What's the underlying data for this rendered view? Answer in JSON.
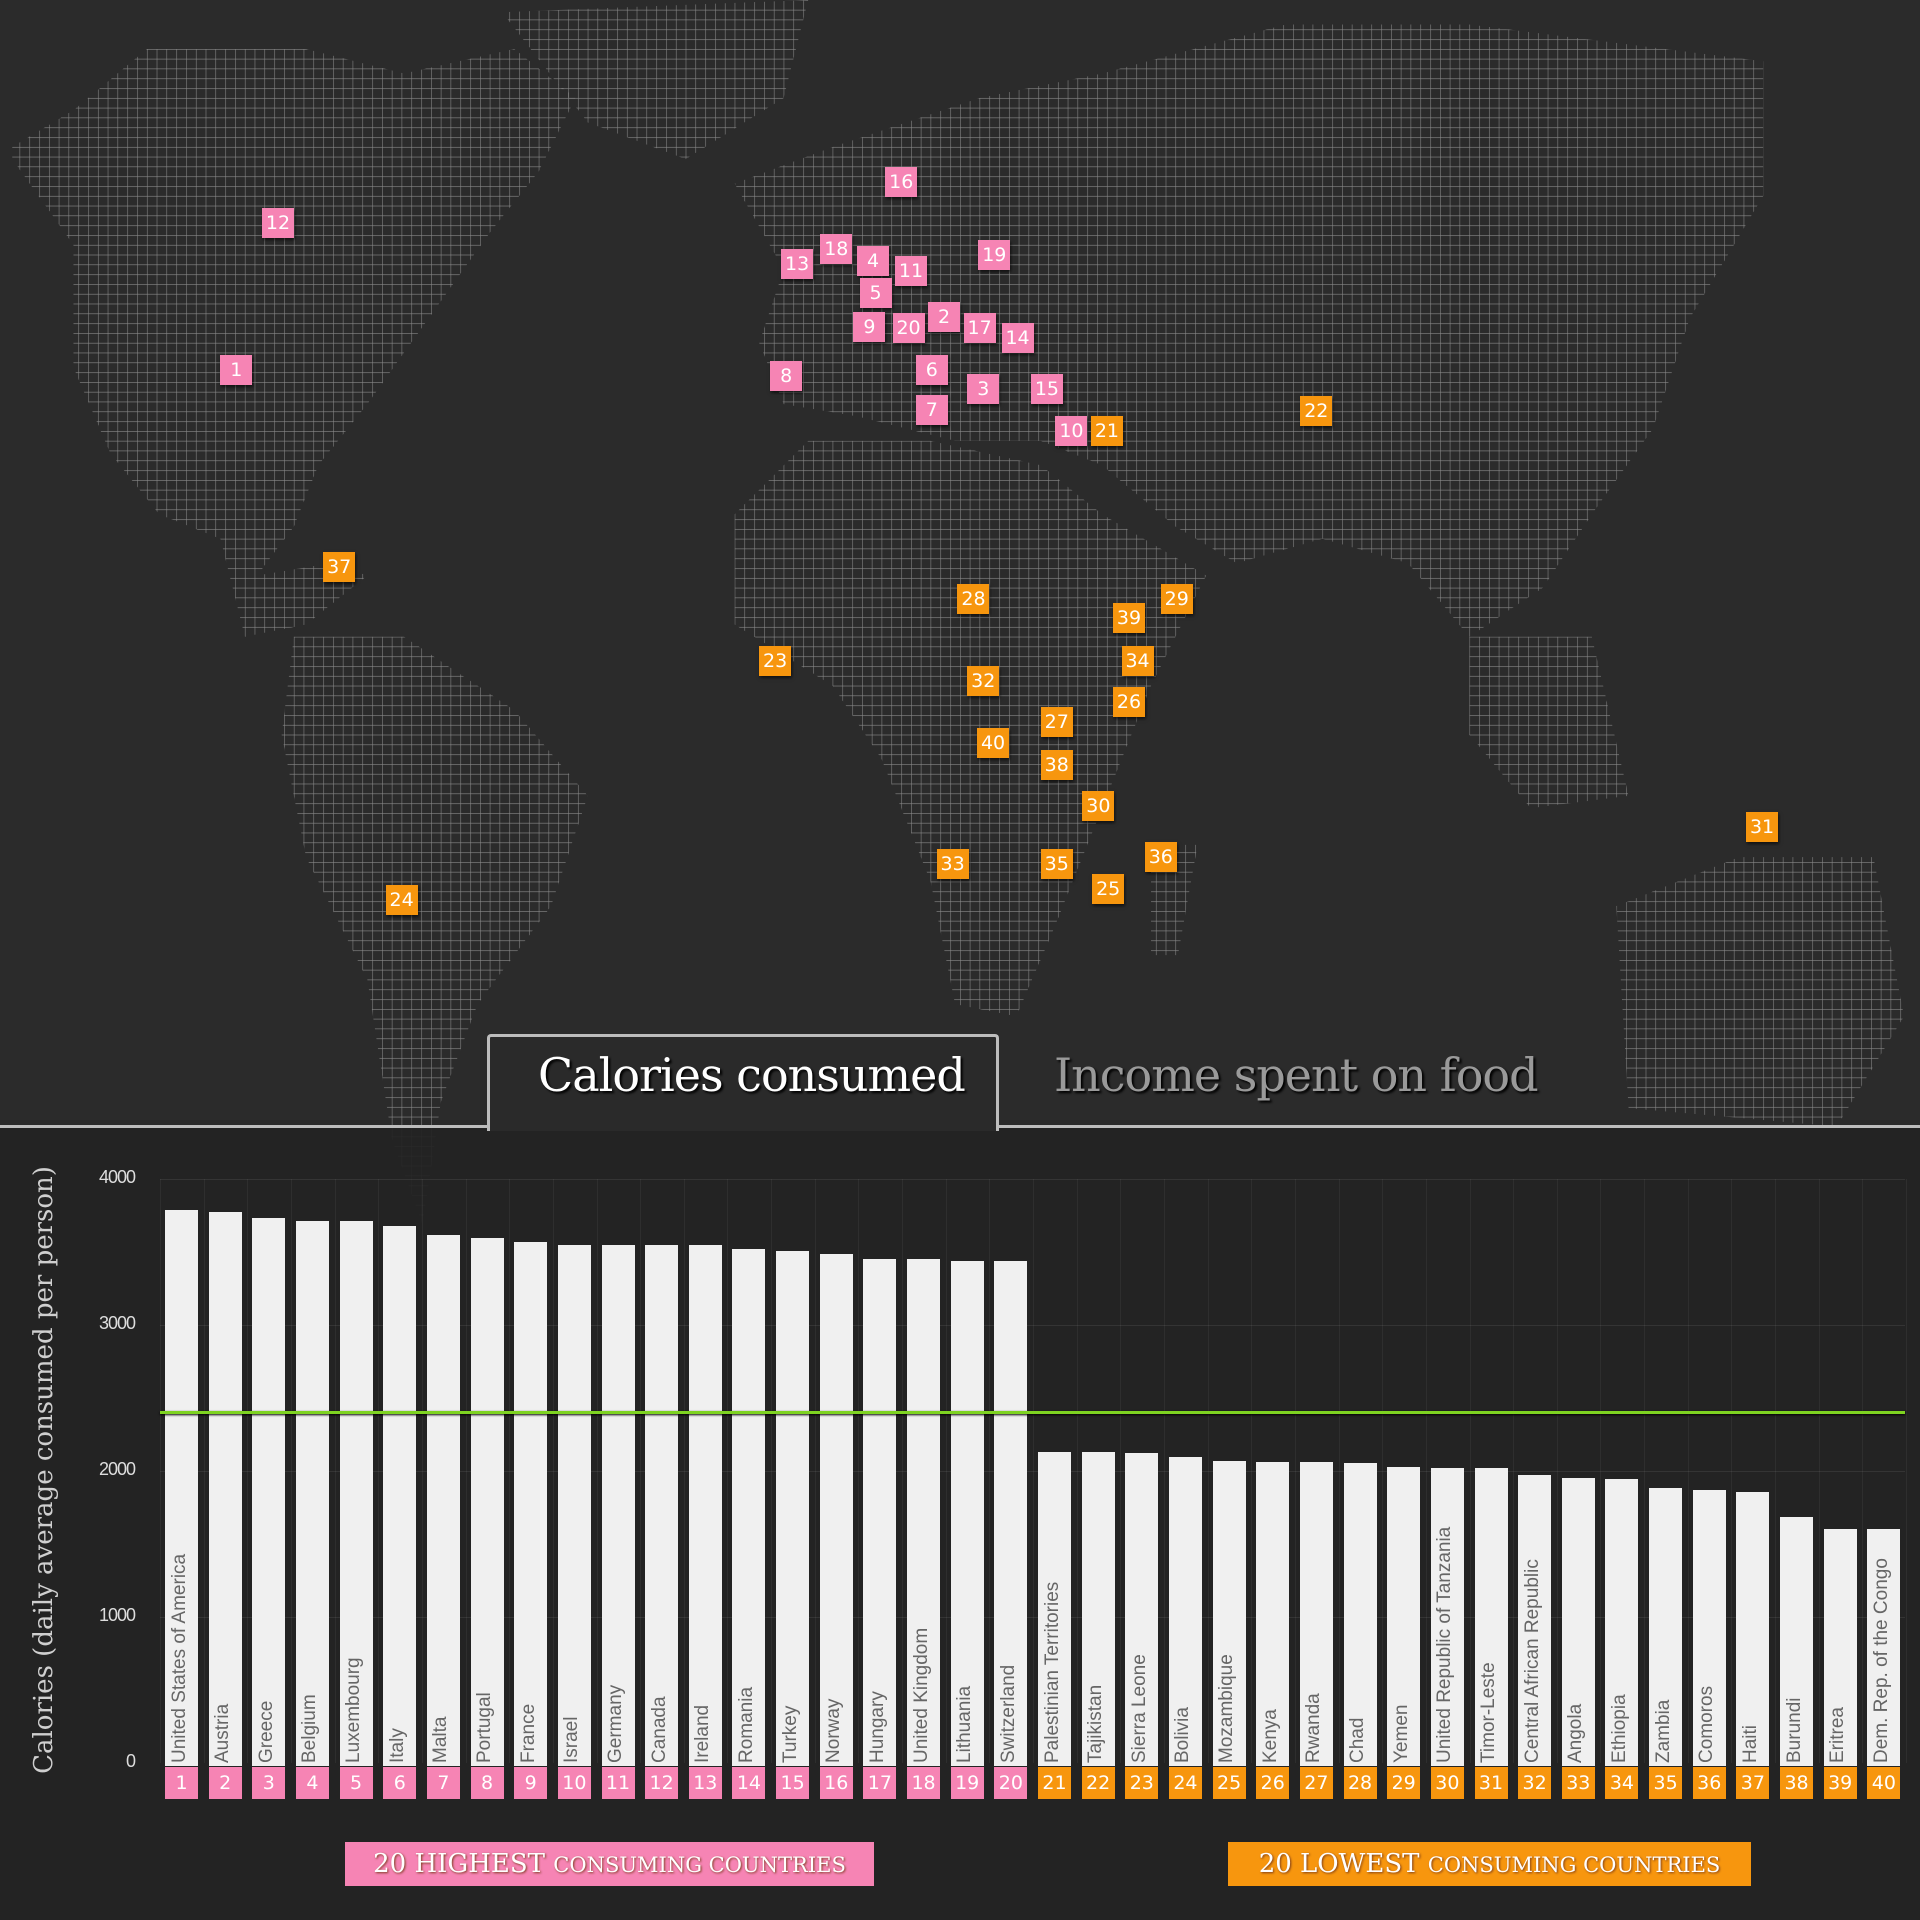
{
  "tabs": [
    {
      "label": "Calories consumed",
      "active": true
    },
    {
      "label": "Income spent on food",
      "active": false
    }
  ],
  "colors": {
    "highest": "#f684b4",
    "lowest": "#f7960e",
    "reference_line": "#7ed321",
    "bar": "#f0f0f0",
    "background": "#2b2b2b"
  },
  "map": {
    "markers": [
      1,
      2,
      3,
      4,
      5,
      6,
      7,
      8,
      9,
      10,
      11,
      12,
      13,
      14,
      15,
      16,
      17,
      18,
      19,
      20,
      21,
      22,
      23,
      24,
      25,
      26,
      27,
      28,
      29,
      30,
      31,
      32,
      33,
      34,
      35,
      36,
      37,
      38,
      39,
      40
    ]
  },
  "legend": {
    "highest": {
      "lead": "20 HIGHEST",
      "rest": "CONSUMING COUNTRIES"
    },
    "lowest": {
      "lead": "20 LOWEST",
      "rest": "CONSUMING COUNTRIES"
    }
  },
  "chart_data": {
    "type": "bar",
    "ylabel": "Calories (daily average consumed per person)",
    "ylim": [
      0,
      4000
    ],
    "yticks": [
      "0",
      "1000",
      "2000",
      "3000",
      "4000"
    ],
    "grid": true,
    "reference_line": 2400,
    "categories": [
      "United States of America",
      "Austria",
      "Greece",
      "Belgium",
      "Luxembourg",
      "Italy",
      "Malta",
      "Portugal",
      "France",
      "Israel",
      "Germany",
      "Canada",
      "Ireland",
      "Romania",
      "Turkey",
      "Norway",
      "Hungary",
      "United Kingdom",
      "Lithuania",
      "Switzerland",
      "Palestinian Territories",
      "Tajikistan",
      "Sierra Leone",
      "Bolivia",
      "Mozambique",
      "Kenya",
      "Rwanda",
      "Chad",
      "Yemen",
      "United Republic of Tanzania",
      "Timor-Leste",
      "Central African Republic",
      "Angola",
      "Ethiopia",
      "Zambia",
      "Comoros",
      "Haiti",
      "Burundi",
      "Eritrea",
      "Dem. Rep. of the Congo"
    ],
    "ranks": [
      "1",
      "2",
      "3",
      "4",
      "5",
      "6",
      "7",
      "8",
      "9",
      "10",
      "11",
      "12",
      "13",
      "14",
      "15",
      "16",
      "17",
      "18",
      "19",
      "20",
      "21",
      "22",
      "23",
      "24",
      "25",
      "26",
      "27",
      "28",
      "29",
      "30",
      "31",
      "32",
      "33",
      "34",
      "35",
      "36",
      "37",
      "38",
      "39",
      "40"
    ],
    "values": [
      3790,
      3775,
      3730,
      3715,
      3715,
      3680,
      3615,
      3595,
      3570,
      3550,
      3545,
      3545,
      3545,
      3520,
      3505,
      3485,
      3455,
      3455,
      3440,
      3440,
      2130,
      2130,
      2125,
      2095,
      2070,
      2060,
      2060,
      2055,
      2030,
      2020,
      2020,
      1970,
      1955,
      1945,
      1885,
      1870,
      1855,
      1685,
      1605,
      1605
    ],
    "groups": [
      "highest",
      "highest",
      "highest",
      "highest",
      "highest",
      "highest",
      "highest",
      "highest",
      "highest",
      "highest",
      "highest",
      "highest",
      "highest",
      "highest",
      "highest",
      "highest",
      "highest",
      "highest",
      "highest",
      "highest",
      "lowest",
      "lowest",
      "lowest",
      "lowest",
      "lowest",
      "lowest",
      "lowest",
      "lowest",
      "lowest",
      "lowest",
      "lowest",
      "lowest",
      "lowest",
      "lowest",
      "lowest",
      "lowest",
      "lowest",
      "lowest",
      "lowest",
      "lowest"
    ]
  }
}
